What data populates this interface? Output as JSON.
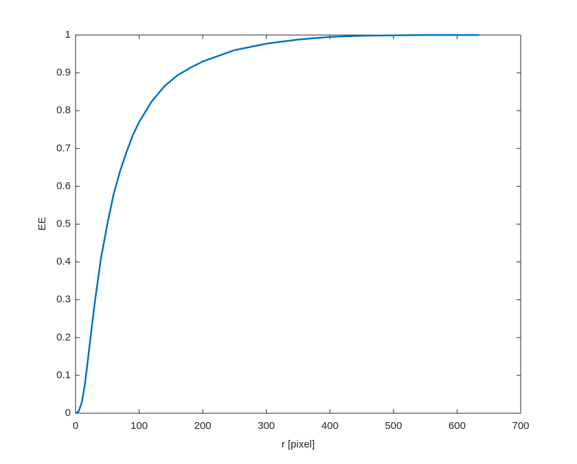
{
  "chart_data": {
    "type": "line",
    "x_label": "r [pixel]",
    "y_label": "EE",
    "x": [
      0,
      5,
      10,
      15,
      20,
      25,
      30,
      40,
      50,
      60,
      70,
      80,
      90,
      100,
      120,
      140,
      160,
      180,
      200,
      250,
      300,
      350,
      400,
      450,
      500,
      550,
      600,
      635
    ],
    "series": [
      {
        "color": "#0072bd",
        "values": [
          0,
          0.005,
          0.03,
          0.08,
          0.15,
          0.22,
          0.29,
          0.41,
          0.5,
          0.58,
          0.64,
          0.69,
          0.735,
          0.77,
          0.825,
          0.865,
          0.893,
          0.913,
          0.93,
          0.96,
          0.977,
          0.988,
          0.995,
          0.998,
          0.999,
          1,
          1,
          1
        ]
      }
    ],
    "xlim": [
      0,
      700
    ],
    "xticks": [
      0,
      100,
      200,
      300,
      400,
      500,
      600,
      700
    ],
    "ylim": [
      0,
      1
    ],
    "yticks": [
      0,
      0.1,
      0.2,
      0.3,
      0.4,
      0.5,
      0.6,
      0.7,
      0.8,
      0.9,
      1
    ],
    "grid": false
  }
}
